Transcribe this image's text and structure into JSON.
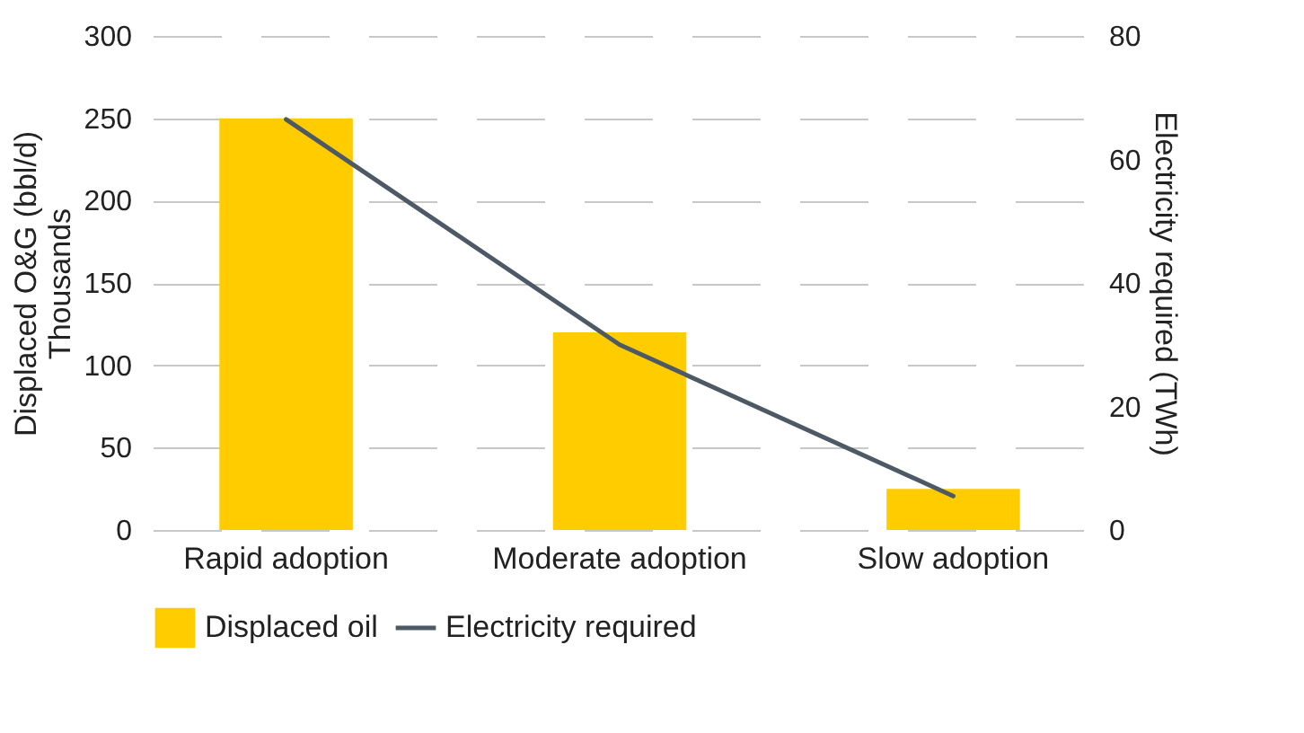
{
  "chart_data": {
    "type": "bar",
    "categories": [
      "Rapid adoption",
      "Moderate adoption",
      "Slow adoption"
    ],
    "ylabel": "Displaced O&G (bbl/d)\nThousands",
    "y2label": "Electricity required (TWh)",
    "ylim": [
      0,
      300
    ],
    "yticks": [
      0,
      50,
      100,
      150,
      200,
      250,
      300
    ],
    "y2lim": [
      0,
      80
    ],
    "y2ticks": [
      0,
      20,
      40,
      60,
      80
    ],
    "grid": "y",
    "legend": "bottom",
    "series": [
      {
        "name": "Displaced oil",
        "color": "#ffcc00",
        "values": [
          250,
          120,
          25
        ]
      },
      {
        "name": "Electricity required",
        "color": "#4d5a66",
        "type": "line",
        "axis": "y2",
        "values": [
          66.5,
          30,
          5.5
        ]
      }
    ]
  }
}
